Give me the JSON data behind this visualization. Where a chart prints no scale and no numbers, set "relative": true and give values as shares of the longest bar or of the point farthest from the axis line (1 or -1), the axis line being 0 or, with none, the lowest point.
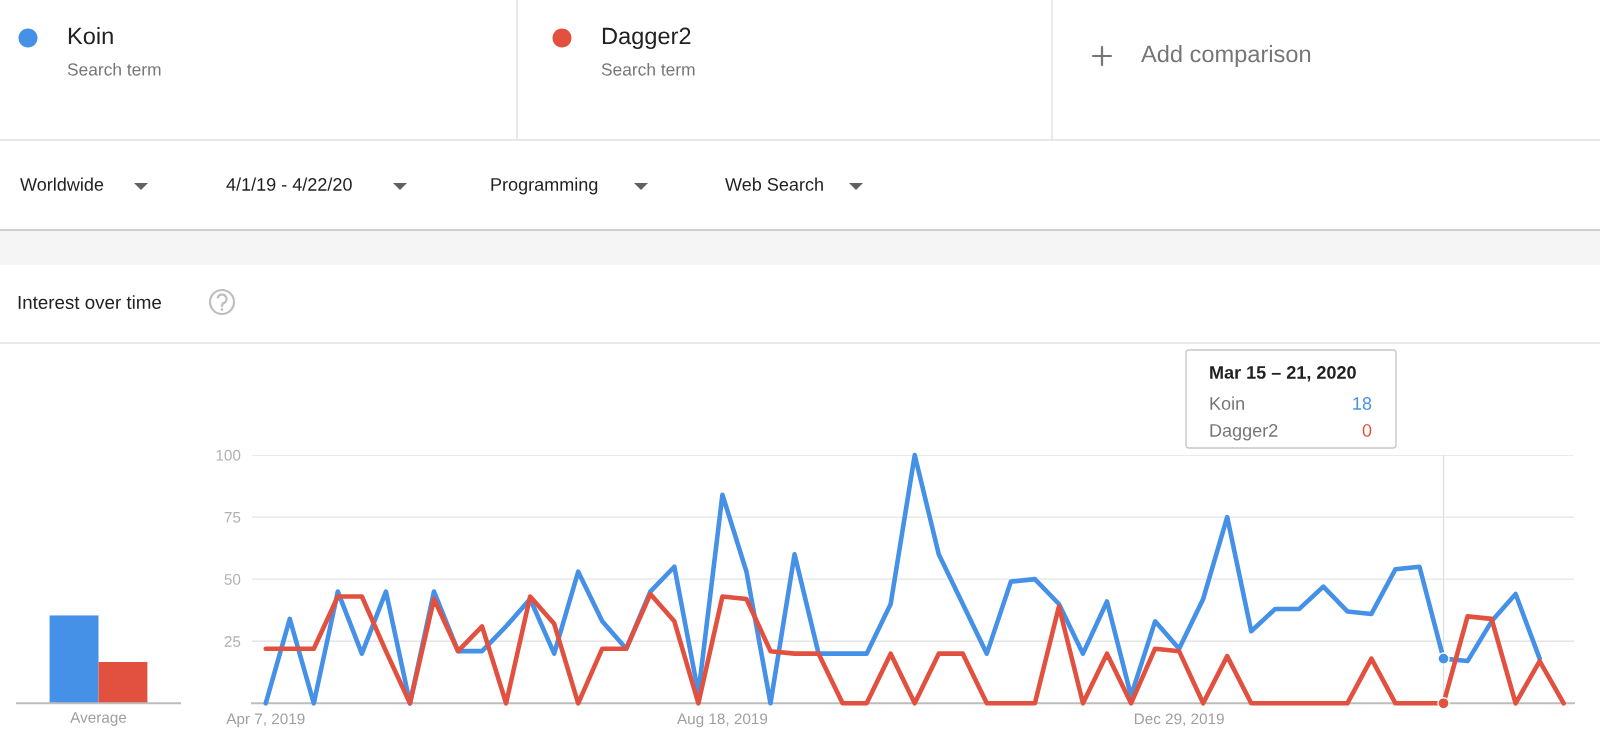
{
  "chart_data": [
    {
      "type": "other",
      "annotations": [
        "Search term",
        "Search term",
        "Add comparison",
        "Worldwide",
        "4/1/19 - 4/22/20",
        "Programming",
        "Web Search"
      ]
    },
    {
      "type": "bar",
      "relative": true,
      "categories": [
        "Average"
      ],
      "tick_labels": "x",
      "series": [
        {
          "color": "#4691e8",
          "values": [
            1
          ]
        },
        {
          "color": "#e2513f",
          "values": [
            0.47
          ]
        }
      ]
    },
    {
      "type": "line",
      "title": "Interest over time",
      "x": [
        "2019-04-07",
        "2019-04-14",
        "2019-04-21",
        "2019-04-28",
        "2019-05-05",
        "2019-05-12",
        "2019-05-19",
        "2019-05-26",
        "2019-06-02",
        "2019-06-09",
        "2019-06-16",
        "2019-06-23",
        "2019-06-30",
        "2019-07-07",
        "2019-07-14",
        "2019-07-21",
        "2019-07-28",
        "2019-08-04",
        "2019-08-11",
        "2019-08-18",
        "2019-08-25",
        "2019-09-01",
        "2019-09-08",
        "2019-09-15",
        "2019-09-22",
        "2019-09-29",
        "2019-10-06",
        "2019-10-13",
        "2019-10-20",
        "2019-10-27",
        "2019-11-03",
        "2019-11-10",
        "2019-11-17",
        "2019-11-24",
        "2019-12-01",
        "2019-12-08",
        "2019-12-15",
        "2019-12-22",
        "2019-12-29",
        "2020-01-05",
        "2020-01-12",
        "2020-01-19",
        "2020-01-26",
        "2020-02-02",
        "2020-02-09",
        "2020-02-16",
        "2020-02-23",
        "2020-03-01",
        "2020-03-08",
        "2020-03-15",
        "2020-03-22",
        "2020-03-29",
        "2020-04-05",
        "2020-04-12",
        "2020-04-19"
      ],
      "series": [
        {
          "name": "Koin",
          "color": "#4691e8",
          "values": [
            0,
            34,
            0,
            45,
            20,
            45,
            0,
            45,
            21,
            21,
            31,
            42,
            20,
            53,
            33,
            22,
            45,
            55,
            4,
            84,
            53,
            0,
            60,
            20,
            20,
            20,
            40,
            100,
            60,
            40,
            20,
            49,
            50,
            40,
            20,
            41,
            3,
            33,
            22,
            42,
            75,
            29,
            38,
            38,
            47,
            37,
            36,
            54,
            55,
            18,
            17,
            33,
            44,
            18,
            null
          ]
        },
        {
          "name": "Dagger2",
          "color": "#e2513f",
          "values": [
            22,
            22,
            22,
            43,
            43,
            21,
            0,
            42,
            21,
            31,
            0,
            43,
            32,
            0,
            22,
            22,
            44,
            33,
            0,
            43,
            42,
            21,
            20,
            20,
            0,
            0,
            20,
            0,
            20,
            20,
            0,
            0,
            0,
            39,
            0,
            20,
            0,
            22,
            21,
            0,
            19,
            0,
            0,
            0,
            0,
            0,
            18,
            0,
            0,
            0,
            35,
            34,
            0,
            17,
            0
          ]
        }
      ],
      "xlim": [
        "2019-04-03",
        "2020-04-22"
      ],
      "xticks": [
        {
          "value": "2019-04-07",
          "label": "Apr 7, 2019"
        },
        {
          "value": "2019-08-18",
          "label": "Aug 18, 2019"
        },
        {
          "value": "2019-12-29",
          "label": "Dec 29, 2019"
        }
      ],
      "ylim": [
        0,
        100
      ],
      "yticks": [
        25,
        50,
        75,
        100
      ],
      "grid": "y",
      "legend": "top",
      "line_style": "solid",
      "ref_lines": [
        {
          "axis": "x",
          "value": "2020-03-15",
          "color": "#e0e0e0"
        }
      ],
      "annotations": [
        "Mar 15 – 21, 2020",
        "Koin",
        "18",
        "Dagger2",
        "0"
      ]
    }
  ]
}
